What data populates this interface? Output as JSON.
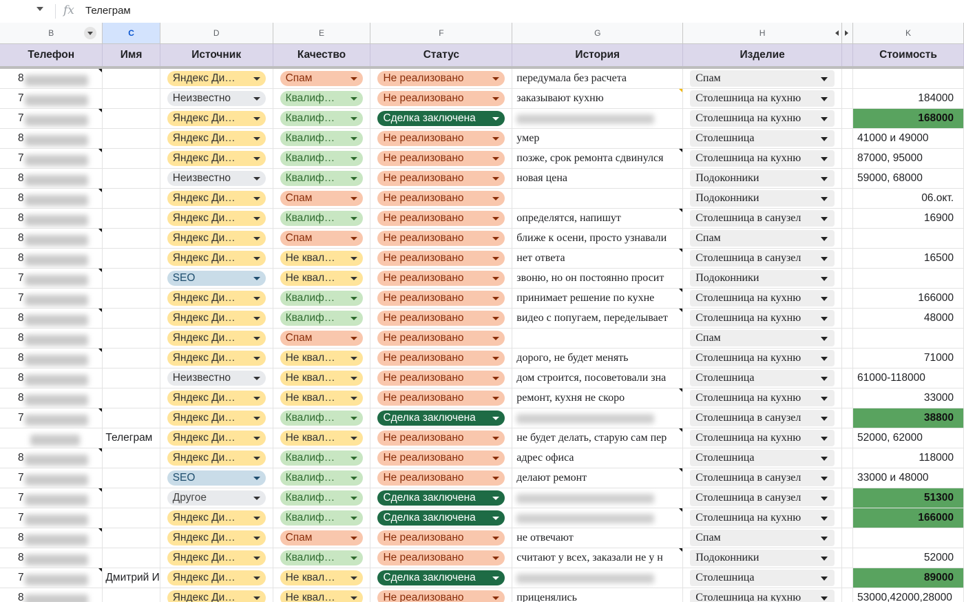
{
  "formula_bar": {
    "fx_label": "fx",
    "value": "Телеграм"
  },
  "column_letters": [
    "B",
    "C",
    "D",
    "E",
    "F",
    "G",
    "H",
    "",
    "K"
  ],
  "headers": [
    "Телефон",
    "Имя",
    "Источник",
    "Качество",
    "Статус",
    "История",
    "Изделие",
    "",
    "Стоимость"
  ],
  "colors": {
    "header_bg": "#dcd8eb",
    "deal_chip": "#1e6b45",
    "cost_green": "#59a35f",
    "spam_chip": "#f9c7ad",
    "qual_chip": "#c8e6c2",
    "source_chip": "#ffe49a"
  },
  "rows": [
    {
      "phone": "8",
      "name": "",
      "source": "Яндекс Ди…",
      "quality": "Спам",
      "status": "Не реализовано",
      "history": "передумала без расчета",
      "product": "Спам",
      "cost": ""
    },
    {
      "phone": "7",
      "name": "",
      "source": "Неизвестно",
      "quality": "Квалиф…",
      "status": "Не реализовано",
      "history": "заказывают кухню",
      "product": "Столешница на кухню",
      "cost": "184000"
    },
    {
      "phone": "7",
      "name": "",
      "source": "Яндекс Ди…",
      "quality": "Квалиф…",
      "status": "Сделка заключена",
      "history": "",
      "product": "Столешница на кухню",
      "cost": "168000"
    },
    {
      "phone": "8",
      "name": "",
      "source": "Яндекс Ди…",
      "quality": "Квалиф…",
      "status": "Не реализовано",
      "history": "умер",
      "product": "Столешница",
      "cost": "41000 и 49000"
    },
    {
      "phone": "7",
      "name": "",
      "source": "Яндекс Ди…",
      "quality": "Квалиф…",
      "status": "Не реализовано",
      "history": "позже, срок ремонта сдвинулся",
      "product": "Столешница на кухню",
      "cost": "87000, 95000"
    },
    {
      "phone": "8",
      "name": "",
      "source": "Неизвестно",
      "quality": "Квалиф…",
      "status": "Не реализовано",
      "history": "новая цена",
      "product": "Подоконники",
      "cost": "59000, 68000"
    },
    {
      "phone": "8",
      "name": "",
      "source": "Яндекс Ди…",
      "quality": "Спам",
      "status": "Не реализовано",
      "history": "",
      "product": "Подоконники",
      "cost": "06.окт."
    },
    {
      "phone": "8",
      "name": "",
      "source": "Яндекс Ди…",
      "quality": "Квалиф…",
      "status": "Не реализовано",
      "history": "определятся, напишут",
      "product": "Столешница в санузел",
      "cost": "16900"
    },
    {
      "phone": "8",
      "name": "",
      "source": "Яндекс Ди…",
      "quality": "Спам",
      "status": "Не реализовано",
      "history": "ближе к осени, просто узнавали",
      "product": "Спам",
      "cost": ""
    },
    {
      "phone": "8",
      "name": "",
      "source": "Яндекс Ди…",
      "quality": "Не квал…",
      "status": "Не реализовано",
      "history": "нет ответа",
      "product": "Столешница в санузел",
      "cost": "16500"
    },
    {
      "phone": "7",
      "name": "",
      "source": "SEO",
      "quality": "Не квал…",
      "status": "Не реализовано",
      "history": "звоню, но он постоянно просит",
      "product": "Подоконники",
      "cost": ""
    },
    {
      "phone": "7",
      "name": "",
      "source": "Яндекс Ди…",
      "quality": "Квалиф…",
      "status": "Не реализовано",
      "history": "принимает решение по кухне",
      "product": "Столешница на кухню",
      "cost": "166000"
    },
    {
      "phone": "8",
      "name": "",
      "source": "Яндекс Ди…",
      "quality": "Квалиф…",
      "status": "Не реализовано",
      "history": "видео с попугаем, переделывает",
      "product": "Столешница на кухню",
      "cost": "48000"
    },
    {
      "phone": "8",
      "name": "",
      "source": "Яндекс Ди…",
      "quality": "Спам",
      "status": "Не реализовано",
      "history": "",
      "product": "Спам",
      "cost": ""
    },
    {
      "phone": "8",
      "name": "",
      "source": "Яндекс Ди…",
      "quality": "Не квал…",
      "status": "Не реализовано",
      "history": "дорого, не будет менять",
      "product": "Столешница на кухню",
      "cost": "71000"
    },
    {
      "phone": "8",
      "name": "",
      "source": "Неизвестно",
      "quality": "Не квал…",
      "status": "Не реализовано",
      "history": "дом строится, посоветовали зна",
      "product": "Столешница",
      "cost": "61000-118000"
    },
    {
      "phone": "8",
      "name": "",
      "source": "Яндекс Ди…",
      "quality": "Не квал…",
      "status": "Не реализовано",
      "history": "ремонт, кухня не скоро",
      "product": "Столешница на кухню",
      "cost": "33000"
    },
    {
      "phone": "7",
      "name": "",
      "source": "Яндекс Ди…",
      "quality": "Квалиф…",
      "status": "Сделка заключена",
      "history": "",
      "product": "Столешница в санузел",
      "cost": "38800"
    },
    {
      "phone": "",
      "name": "Телеграм",
      "source": "Яндекс Ди…",
      "quality": "Не квал…",
      "status": "Не реализовано",
      "history": "не будет делать, старую сам пер",
      "product": "Столешница на кухню",
      "cost": "52000, 62000"
    },
    {
      "phone": "8",
      "name": "",
      "source": "Яндекс Ди…",
      "quality": "Квалиф…",
      "status": "Не реализовано",
      "history": "адрес офиса",
      "product": "Столешница",
      "cost": "118000"
    },
    {
      "phone": "7",
      "name": "",
      "source": "SEO",
      "quality": "Квалиф…",
      "status": "Не реализовано",
      "history": "делают ремонт",
      "product": "Столешница в санузел",
      "cost": "33000 и 48000"
    },
    {
      "phone": "7",
      "name": "",
      "source": "Другое",
      "quality": "Квалиф…",
      "status": "Сделка заключена",
      "history": "",
      "product": "Столешница в санузел",
      "cost": "51300"
    },
    {
      "phone": "7",
      "name": "",
      "source": "Яндекс Ди…",
      "quality": "Квалиф…",
      "status": "Сделка заключена",
      "history": "",
      "product": "Столешница на кухню",
      "cost": "166000"
    },
    {
      "phone": "8",
      "name": "",
      "source": "Яндекс Ди…",
      "quality": "Спам",
      "status": "Не реализовано",
      "history": "не отвечают",
      "product": "Спам",
      "cost": ""
    },
    {
      "phone": "8",
      "name": "",
      "source": "Яндекс Ди…",
      "quality": "Квалиф…",
      "status": "Не реализовано",
      "history": "считают у всех, заказали не у н",
      "product": "Подоконники",
      "cost": "52000"
    },
    {
      "phone": "7",
      "name": "Дмитрий И",
      "source": "Яндекс Ди…",
      "quality": "Не квал…",
      "status": "Сделка заключена",
      "history": "",
      "product": "Столешница",
      "cost": "89000"
    },
    {
      "phone": "8",
      "name": "",
      "source": "Яндекс Ди…",
      "quality": "Не квал…",
      "status": "Не реализовано",
      "history": "приценялись",
      "product": "Столешница на кухню",
      "cost": "53000,42000,28000"
    }
  ]
}
